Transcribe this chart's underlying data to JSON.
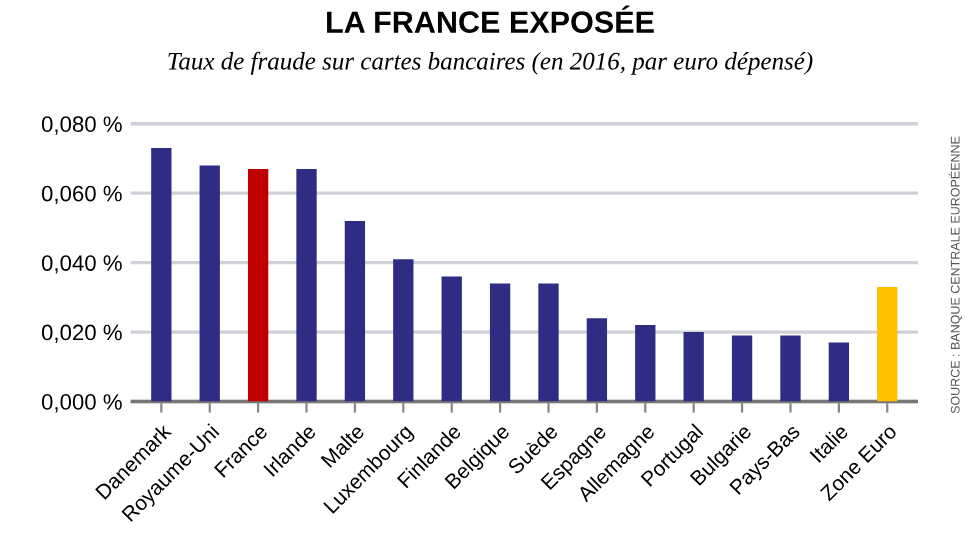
{
  "chart_data": {
    "type": "bar",
    "title": "LA FRANCE EXPOSÉE",
    "subtitle": "Taux de fraude sur cartes bancaires (en 2016, par euro dépensé)",
    "categories": [
      "Danemark",
      "Royaume-Uni",
      "France",
      "Irlande",
      "Malte",
      "Luxembourg",
      "Finlande",
      "Belgique",
      "Suède",
      "Espagne",
      "Allemagne",
      "Portugal",
      "Bulgarie",
      "Pays-Bas",
      "Italie",
      "Zone Euro"
    ],
    "values": [
      0.073,
      0.068,
      0.067,
      0.067,
      0.052,
      0.041,
      0.036,
      0.034,
      0.034,
      0.024,
      0.022,
      0.02,
      0.019,
      0.019,
      0.017,
      0.033
    ],
    "colors": [
      "#2e2d83",
      "#2e2d83",
      "#c00000",
      "#2e2d83",
      "#2e2d83",
      "#2e2d83",
      "#2e2d83",
      "#2e2d83",
      "#2e2d83",
      "#2e2d83",
      "#2e2d83",
      "#2e2d83",
      "#2e2d83",
      "#2e2d83",
      "#2e2d83",
      "#ffc000"
    ],
    "ylim": [
      0,
      0.08
    ],
    "yticks": [
      {
        "value": 0,
        "label": "0,000 %"
      },
      {
        "value": 0.02,
        "label": "0,020 %"
      },
      {
        "value": 0.04,
        "label": "0,040 %"
      },
      {
        "value": 0.06,
        "label": "0,060 %"
      },
      {
        "value": 0.08,
        "label": "0,080 %"
      }
    ],
    "grid": "y",
    "legend": false,
    "annotations": [
      "SOURCE : BANQUE CENTRALE EUROPÉENNE"
    ]
  }
}
